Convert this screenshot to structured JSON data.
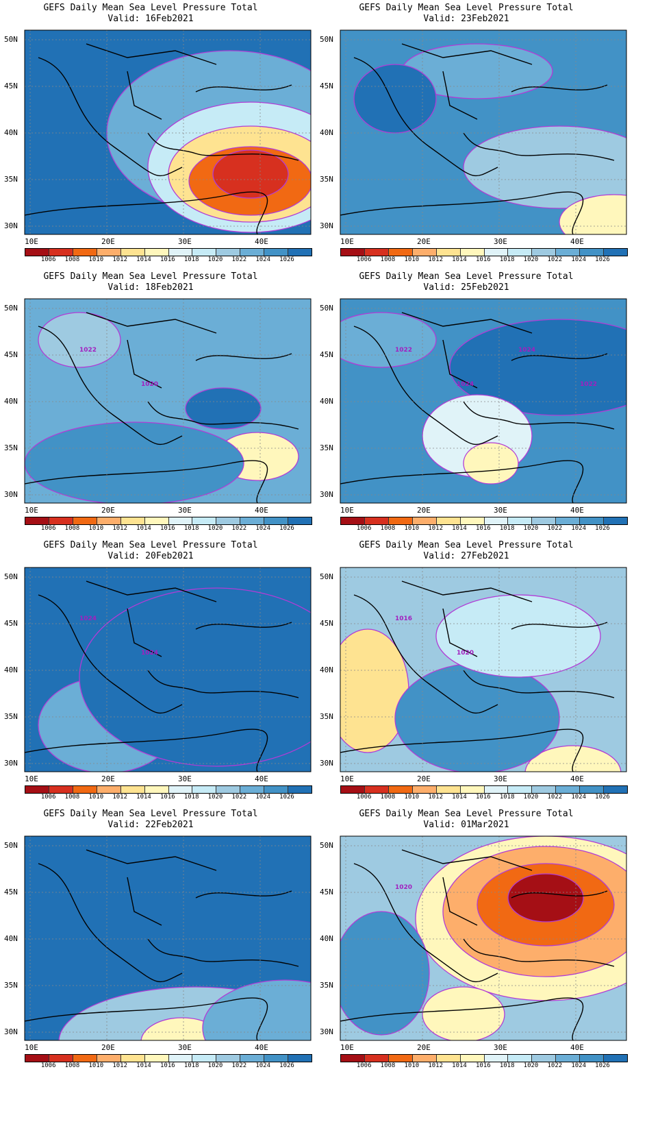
{
  "panels": [
    {
      "line1": "GEFS Daily Mean Sea Level Pressure Total",
      "line2": "Valid: 16Feb2021",
      "labels": []
    },
    {
      "line1": "GEFS Daily Mean Sea Level Pressure Total",
      "line2": "Valid: 23Feb2021",
      "labels": []
    },
    {
      "line1": "GEFS Daily Mean Sea Level Pressure Total",
      "line2": "Valid: 18Feb2021",
      "labels": [
        "1022",
        "1020"
      ]
    },
    {
      "line1": "GEFS Daily Mean Sea Level Pressure Total",
      "line2": "Valid: 25Feb2021",
      "labels": [
        "1022",
        "1024",
        "1024",
        "1022"
      ]
    },
    {
      "line1": "GEFS Daily Mean Sea Level Pressure Total",
      "line2": "Valid: 20Feb2021",
      "labels": [
        "1024",
        "1024"
      ]
    },
    {
      "line1": "GEFS Daily Mean Sea Level Pressure Total",
      "line2": "Valid: 27Feb2021",
      "labels": [
        "1016",
        "1020"
      ]
    },
    {
      "line1": "GEFS Daily Mean Sea Level Pressure Total",
      "line2": "Valid: 22Feb2021",
      "labels": []
    },
    {
      "line1": "GEFS Daily Mean Sea Level Pressure Total",
      "line2": "Valid: 01Mar2021",
      "labels": [
        "1020"
      ]
    }
  ],
  "axes": {
    "lat_labels": [
      "50N",
      "45N",
      "40N",
      "35N",
      "30N"
    ],
    "lon_labels": [
      "10E",
      "20E",
      "30E",
      "40E"
    ]
  },
  "colorbar": {
    "levels": [
      "1006",
      "1008",
      "1010",
      "1012",
      "1014",
      "1016",
      "1018",
      "1020",
      "1022",
      "1024",
      "1026"
    ],
    "colors": [
      "#a50f15",
      "#d7301f",
      "#f16913",
      "#fdae6b",
      "#fee391",
      "#fff7bc",
      "#e0f3f8",
      "#c6ebf6",
      "#9ecae1",
      "#6baed6",
      "#4292c6",
      "#2171b5"
    ]
  },
  "theme": {
    "contour_color": "#b13cd6"
  }
}
